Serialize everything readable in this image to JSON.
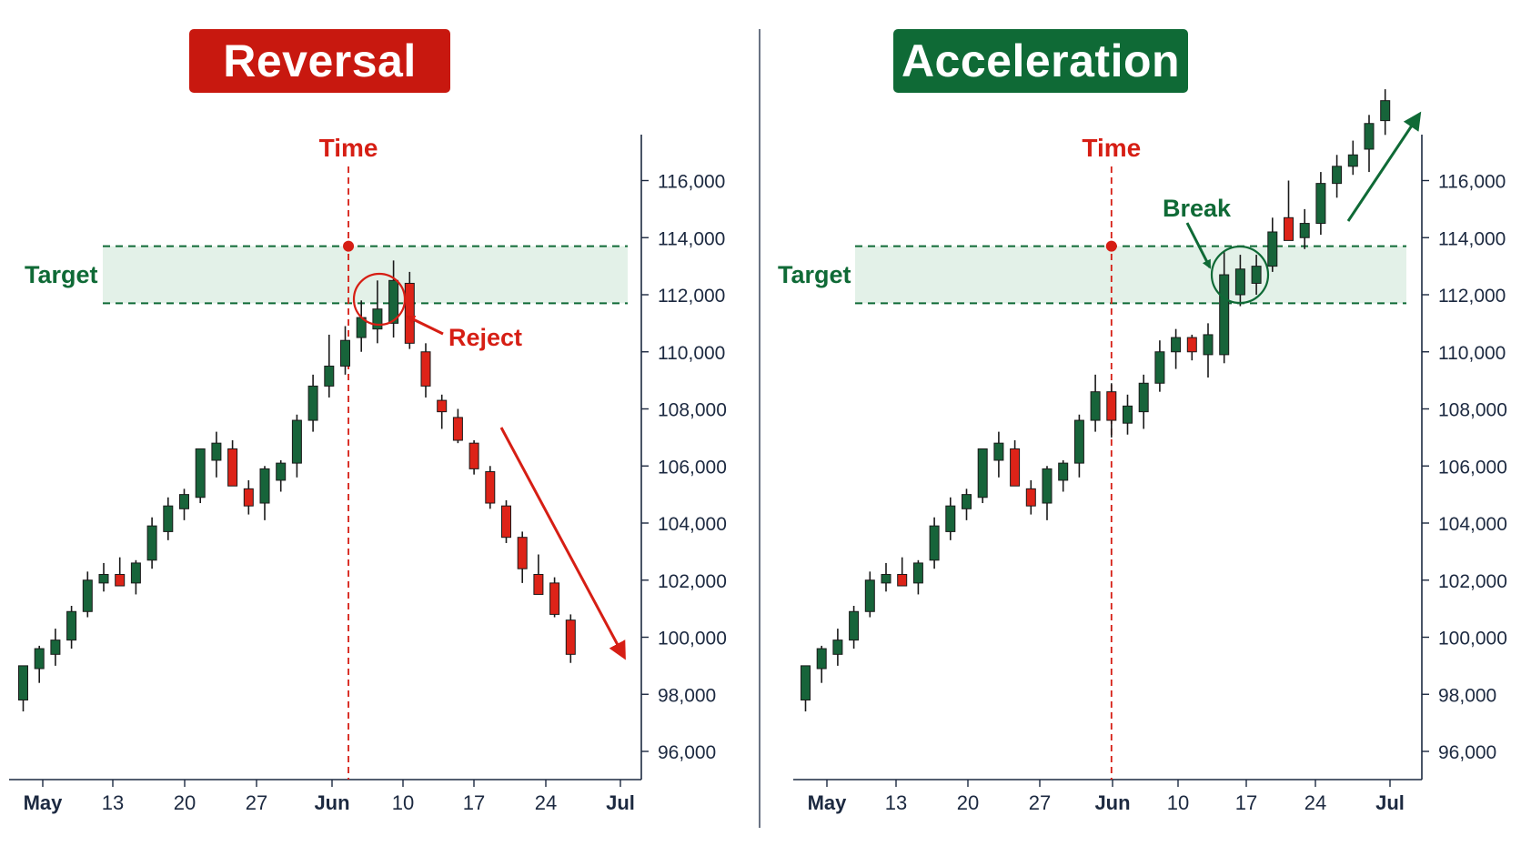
{
  "colors": {
    "up": "#17643a",
    "down": "#dd2318",
    "red_accent": "#d61e14",
    "green_accent": "#0f6a36",
    "zone_fill": "#e3f1e8",
    "axis": "#1c2940"
  },
  "chart_data": [
    {
      "type": "candlestick",
      "title": "Reversal",
      "x_tick_labels": [
        "May",
        "13",
        "20",
        "27",
        "Jun",
        "10",
        "17",
        "24",
        "Jul"
      ],
      "y_tick_labels": [
        "96,000",
        "98,000",
        "100,000",
        "102,000",
        "104,000",
        "106,000",
        "108,000",
        "110,000",
        "112,000",
        "114,000",
        "116,000"
      ],
      "ylim": [
        94500,
        117500
      ],
      "y_axis_side": "right",
      "target_zone": {
        "label": "Target",
        "low": 111700,
        "high": 113700
      },
      "time_marker": {
        "label": "Time",
        "index": 20.2
      },
      "annotations": [
        {
          "text": "Reject",
          "style": "arrow-pointing-left"
        }
      ],
      "trend_arrow": "down",
      "candles": [
        {
          "o": 97800,
          "h": 99000,
          "l": 97400,
          "c": 99000
        },
        {
          "o": 98900,
          "h": 99700,
          "l": 98400,
          "c": 99600
        },
        {
          "o": 99400,
          "h": 100300,
          "l": 99000,
          "c": 99900
        },
        {
          "o": 99900,
          "h": 101100,
          "l": 99600,
          "c": 100900
        },
        {
          "o": 100900,
          "h": 102300,
          "l": 100700,
          "c": 102000
        },
        {
          "o": 101900,
          "h": 102600,
          "l": 101600,
          "c": 102200
        },
        {
          "o": 102200,
          "h": 102800,
          "l": 101800,
          "c": 101800
        },
        {
          "o": 101900,
          "h": 102700,
          "l": 101500,
          "c": 102600
        },
        {
          "o": 102700,
          "h": 104200,
          "l": 102400,
          "c": 103900
        },
        {
          "o": 103700,
          "h": 104900,
          "l": 103400,
          "c": 104600
        },
        {
          "o": 104500,
          "h": 105200,
          "l": 104100,
          "c": 105000
        },
        {
          "o": 104900,
          "h": 106600,
          "l": 104700,
          "c": 106600
        },
        {
          "o": 106200,
          "h": 107200,
          "l": 105600,
          "c": 106800
        },
        {
          "o": 106600,
          "h": 106900,
          "l": 105300,
          "c": 105300
        },
        {
          "o": 105200,
          "h": 105500,
          "l": 104300,
          "c": 104600
        },
        {
          "o": 104700,
          "h": 106000,
          "l": 104100,
          "c": 105900
        },
        {
          "o": 105500,
          "h": 106200,
          "l": 105100,
          "c": 106100
        },
        {
          "o": 106100,
          "h": 107800,
          "l": 105600,
          "c": 107600
        },
        {
          "o": 107600,
          "h": 109200,
          "l": 107200,
          "c": 108800
        },
        {
          "o": 108800,
          "h": 110600,
          "l": 108400,
          "c": 109500
        },
        {
          "o": 109500,
          "h": 110900,
          "l": 109200,
          "c": 110400
        },
        {
          "o": 110500,
          "h": 111800,
          "l": 110000,
          "c": 111200
        },
        {
          "o": 110800,
          "h": 112500,
          "l": 110300,
          "c": 111500
        },
        {
          "o": 111000,
          "h": 113200,
          "l": 110500,
          "c": 112500
        },
        {
          "o": 112400,
          "h": 112800,
          "l": 110100,
          "c": 110300
        },
        {
          "o": 110000,
          "h": 110300,
          "l": 108400,
          "c": 108800
        },
        {
          "o": 108300,
          "h": 108500,
          "l": 107300,
          "c": 107900
        },
        {
          "o": 107700,
          "h": 108000,
          "l": 106800,
          "c": 106900
        },
        {
          "o": 106800,
          "h": 106900,
          "l": 105700,
          "c": 105900
        },
        {
          "o": 105800,
          "h": 106000,
          "l": 104500,
          "c": 104700
        },
        {
          "o": 104600,
          "h": 104800,
          "l": 103300,
          "c": 103500
        },
        {
          "o": 103500,
          "h": 103700,
          "l": 101900,
          "c": 102400
        },
        {
          "o": 102200,
          "h": 102900,
          "l": 101600,
          "c": 101500
        },
        {
          "o": 101900,
          "h": 102100,
          "l": 100700,
          "c": 100800
        },
        {
          "o": 100600,
          "h": 100800,
          "l": 99100,
          "c": 99400
        }
      ]
    },
    {
      "type": "candlestick",
      "title": "Acceleration",
      "x_tick_labels": [
        "May",
        "13",
        "20",
        "27",
        "Jun",
        "10",
        "17",
        "24",
        "Jul"
      ],
      "y_tick_labels": [
        "96,000",
        "98,000",
        "100,000",
        "102,000",
        "104,000",
        "106,000",
        "108,000",
        "110,000",
        "112,000",
        "114,000",
        "116,000"
      ],
      "ylim": [
        94500,
        117500
      ],
      "y_axis_side": "right",
      "target_zone": {
        "label": "Target",
        "low": 111700,
        "high": 113700
      },
      "time_marker": {
        "label": "Time",
        "index": 19.0
      },
      "annotations": [
        {
          "text": "Break",
          "style": "arrow-pointing-down"
        }
      ],
      "trend_arrow": "up",
      "candles": [
        {
          "o": 97800,
          "h": 99000,
          "l": 97400,
          "c": 99000
        },
        {
          "o": 98900,
          "h": 99700,
          "l": 98400,
          "c": 99600
        },
        {
          "o": 99400,
          "h": 100300,
          "l": 99000,
          "c": 99900
        },
        {
          "o": 99900,
          "h": 101100,
          "l": 99600,
          "c": 100900
        },
        {
          "o": 100900,
          "h": 102300,
          "l": 100700,
          "c": 102000
        },
        {
          "o": 101900,
          "h": 102600,
          "l": 101600,
          "c": 102200
        },
        {
          "o": 102200,
          "h": 102800,
          "l": 101800,
          "c": 101800
        },
        {
          "o": 101900,
          "h": 102700,
          "l": 101500,
          "c": 102600
        },
        {
          "o": 102700,
          "h": 104200,
          "l": 102400,
          "c": 103900
        },
        {
          "o": 103700,
          "h": 104900,
          "l": 103400,
          "c": 104600
        },
        {
          "o": 104500,
          "h": 105200,
          "l": 104100,
          "c": 105000
        },
        {
          "o": 104900,
          "h": 106600,
          "l": 104700,
          "c": 106600
        },
        {
          "o": 106200,
          "h": 107200,
          "l": 105600,
          "c": 106800
        },
        {
          "o": 106600,
          "h": 106900,
          "l": 105300,
          "c": 105300
        },
        {
          "o": 105200,
          "h": 105500,
          "l": 104300,
          "c": 104600
        },
        {
          "o": 104700,
          "h": 106000,
          "l": 104100,
          "c": 105900
        },
        {
          "o": 105500,
          "h": 106200,
          "l": 105100,
          "c": 106100
        },
        {
          "o": 106100,
          "h": 107800,
          "l": 105600,
          "c": 107600
        },
        {
          "o": 107600,
          "h": 109200,
          "l": 107200,
          "c": 108600
        },
        {
          "o": 108600,
          "h": 108900,
          "l": 107000,
          "c": 107600
        },
        {
          "o": 107500,
          "h": 108500,
          "l": 107100,
          "c": 108100
        },
        {
          "o": 107900,
          "h": 109200,
          "l": 107300,
          "c": 108900
        },
        {
          "o": 108900,
          "h": 110400,
          "l": 108600,
          "c": 110000
        },
        {
          "o": 110000,
          "h": 110800,
          "l": 109400,
          "c": 110500
        },
        {
          "o": 110500,
          "h": 110600,
          "l": 109700,
          "c": 110000
        },
        {
          "o": 109900,
          "h": 111000,
          "l": 109100,
          "c": 110600
        },
        {
          "o": 109900,
          "h": 113500,
          "l": 109600,
          "c": 112700
        },
        {
          "o": 112000,
          "h": 113400,
          "l": 111600,
          "c": 112900
        },
        {
          "o": 112400,
          "h": 113400,
          "l": 112000,
          "c": 113000
        },
        {
          "o": 113000,
          "h": 114700,
          "l": 112800,
          "c": 114200
        },
        {
          "o": 114700,
          "h": 116000,
          "l": 113900,
          "c": 113900
        },
        {
          "o": 114000,
          "h": 115000,
          "l": 113600,
          "c": 114500
        },
        {
          "o": 114500,
          "h": 116300,
          "l": 114100,
          "c": 115900
        },
        {
          "o": 115900,
          "h": 116900,
          "l": 115400,
          "c": 116500
        },
        {
          "o": 116500,
          "h": 117400,
          "l": 116200,
          "c": 116900
        },
        {
          "o": 117100,
          "h": 118300,
          "l": 116300,
          "c": 118000
        },
        {
          "o": 118100,
          "h": 119200,
          "l": 117600,
          "c": 118800
        }
      ]
    }
  ]
}
